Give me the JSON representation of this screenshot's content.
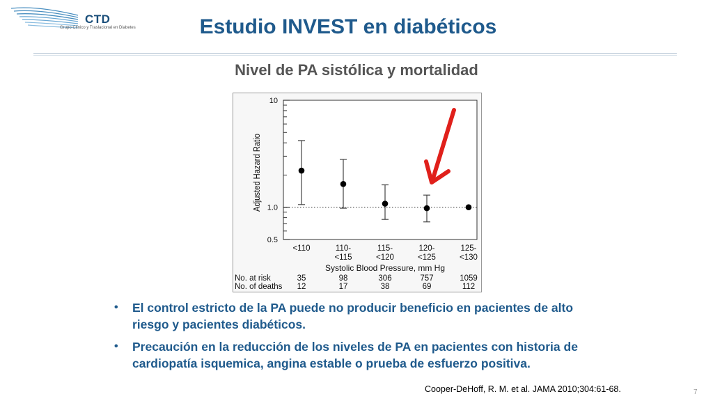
{
  "logo": {
    "name": "CTD",
    "subtitle": "Grupo Clínico y Traslacional en Diabetes"
  },
  "slide": {
    "title": "Estudio INVEST en diabéticos",
    "subtitle": "Nivel de PA sistólica y mortalidad",
    "bullets": [
      "El control estricto de la PA puede no producir beneficio en pacientes de alto riesgo y pacientes diabéticos.",
      "Precaución en la reducción de los niveles de PA en pacientes con historia de cardiopatía isquemica, angina estable o prueba de  esfuerzo positiva."
    ],
    "citation": "Cooper-DeHoff, R. M. et al. JAMA 2010;304:61-68.",
    "slide_number": "7"
  },
  "colors": {
    "title": "#1f5a8c",
    "arrow": "#e0201b"
  },
  "chart_data": {
    "type": "scatter",
    "title": "",
    "xlabel": "Systolic Blood Pressure, mm Hg",
    "ylabel": "Adjusted Hazard Ratio",
    "y_scale": "log",
    "ylim": [
      0.5,
      10
    ],
    "yticks": [
      "0.5",
      "1.0",
      "10"
    ],
    "reference_line": 1.0,
    "categories": [
      "<110",
      "110-\n<115",
      "115-\n<120",
      "120-\n<125",
      "125-\n<130"
    ],
    "values": [
      2.2,
      1.65,
      1.08,
      0.98,
      1.0
    ],
    "ci_low": [
      1.06,
      0.98,
      0.77,
      0.73,
      null
    ],
    "ci_high": [
      4.2,
      2.8,
      1.62,
      1.3,
      null
    ],
    "risk_table": [
      {
        "label": "No. at risk",
        "values": [
          "35",
          "98",
          "306",
          "757",
          "1059"
        ]
      },
      {
        "label": "No. of deaths",
        "values": [
          "12",
          "17",
          "38",
          "69",
          "112"
        ]
      }
    ]
  }
}
